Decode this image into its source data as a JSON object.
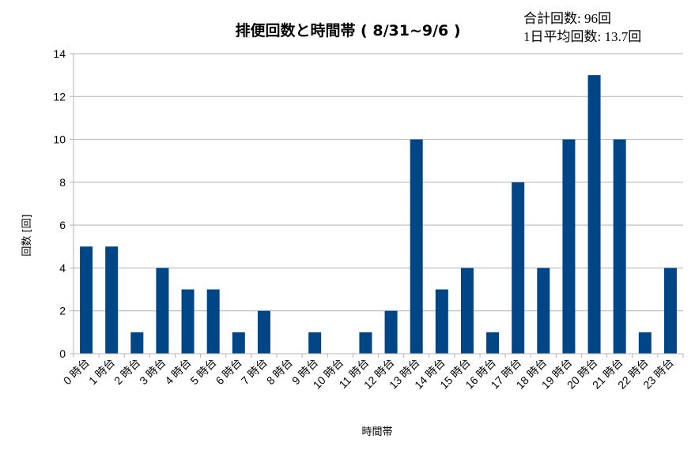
{
  "chart_data": {
    "type": "bar",
    "title": "排便回数と時間帯 ( 8/31~9/6 )",
    "annotations": [
      "合計回数: 96回",
      "1日平均回数: 13.7回"
    ],
    "xlabel": "時間帯",
    "ylabel": "回数 [回]",
    "ylim": [
      0,
      14
    ],
    "yticks": [
      0,
      2,
      4,
      6,
      8,
      10,
      12,
      14
    ],
    "grid": true,
    "bar_color": "#004586",
    "categories": [
      "0 時台",
      "1 時台",
      "2 時台",
      "3 時台",
      "4 時台",
      "5 時台",
      "6 時台",
      "7 時台",
      "8 時台",
      "9 時台",
      "10 時台",
      "11 時台",
      "12 時台",
      "13 時台",
      "14 時台",
      "15 時台",
      "16 時台",
      "17 時台",
      "18 時台",
      "19 時台",
      "20 時台",
      "21 時台",
      "22 時台",
      "23 時台"
    ],
    "values": [
      5,
      5,
      1,
      4,
      3,
      3,
      1,
      2,
      0,
      1,
      0,
      1,
      2,
      10,
      3,
      4,
      1,
      8,
      4,
      10,
      13,
      10,
      1,
      4
    ]
  }
}
